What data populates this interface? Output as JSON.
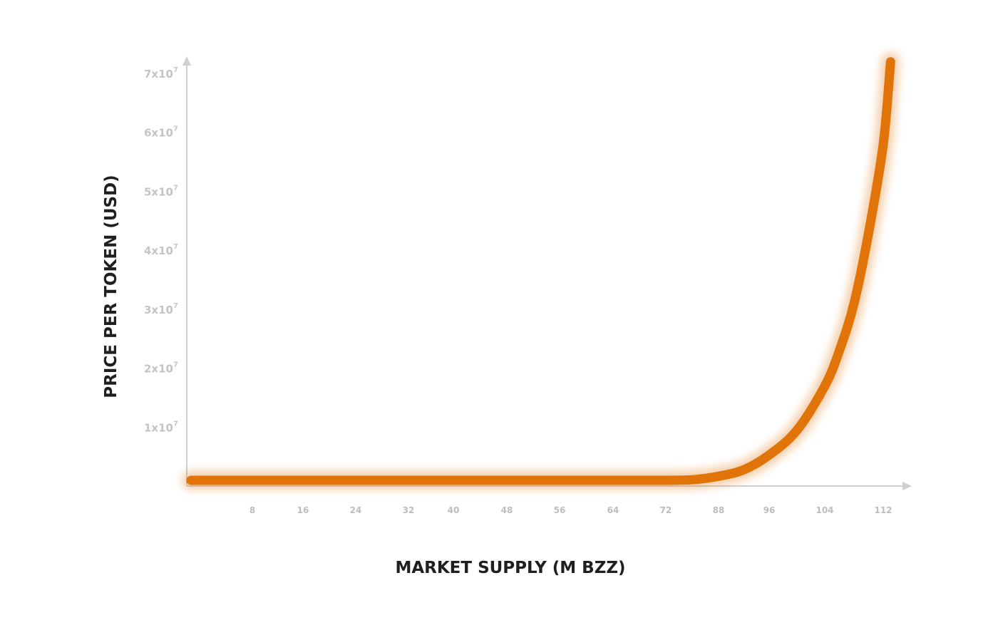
{
  "chart_data": {
    "type": "line",
    "title": "",
    "xlabel": "MARKET SUPPLY (M BZZ)",
    "ylabel": "PRICE PER TOKEN (USD)",
    "x_ticks": [
      "8",
      "16",
      "24",
      "32",
      "40",
      "48",
      "56",
      "64",
      "72",
      "88",
      "96",
      "104",
      "112"
    ],
    "y_ticks": [
      {
        "value": 10000000,
        "base": "1x10",
        "exp": "7"
      },
      {
        "value": 20000000,
        "base": "2x10",
        "exp": "7"
      },
      {
        "value": 30000000,
        "base": "3x10",
        "exp": "7"
      },
      {
        "value": 40000000,
        "base": "4x10",
        "exp": "7"
      },
      {
        "value": 50000000,
        "base": "5x10",
        "exp": "7"
      },
      {
        "value": 60000000,
        "base": "6x10",
        "exp": "7"
      },
      {
        "value": 70000000,
        "base": "7x10",
        "exp": "7"
      }
    ],
    "ylim": [
      0,
      72000000
    ],
    "grid": false,
    "series": [
      {
        "color": "#e07408",
        "x": [
          0,
          8,
          16,
          24,
          32,
          40,
          48,
          56,
          64,
          72,
          80,
          88,
          92,
          96,
          100,
          104,
          106,
          108,
          110,
          112,
          113
        ],
        "y": [
          0,
          0,
          0,
          0,
          0,
          0,
          0,
          0,
          0,
          5000,
          100000,
          700000,
          1800000,
          4300000,
          8500000,
          16000000,
          22000000,
          30000000,
          42000000,
          57000000,
          71000000
        ]
      }
    ]
  }
}
